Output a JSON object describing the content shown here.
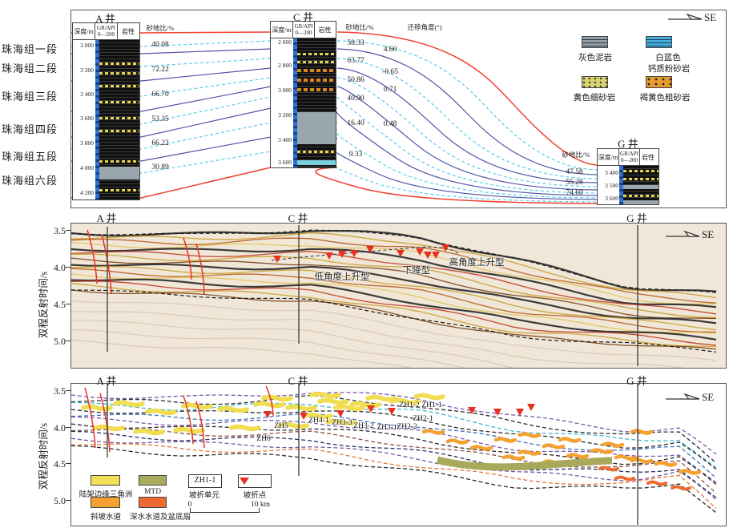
{
  "direction": "SE",
  "axis": {
    "ylabel": "双程反射时间/s",
    "yticks": [
      "3.5",
      "4.0",
      "4.5",
      "5.0"
    ]
  },
  "formations": [
    "珠海组一段",
    "珠海组二段",
    "珠海组三段",
    "珠海组四段",
    "珠海组五段",
    "珠海组六段"
  ],
  "headers": {
    "depth": "深度/m",
    "gr": "GR/API",
    "gr_range": "0—200",
    "lith": "岩性",
    "sand": "砂地比/%",
    "angle": "迁移角度(°)"
  },
  "wells": {
    "A": {
      "name": "A 井",
      "depths": [
        "3 000",
        "3 200",
        "3 400",
        "3 600",
        "3 800",
        "4 000",
        "4 200"
      ],
      "sands": [
        "40.08",
        "72.22",
        "66.70",
        "53.35",
        "66.22",
        "30.89"
      ]
    },
    "C": {
      "name": "C 井",
      "depths": [
        "2 600",
        "2 800",
        "3 000",
        "3 200",
        "3 400",
        "3 600"
      ],
      "sands": [
        "58.33",
        "63.77",
        "50.86",
        "40.90",
        "16.40",
        "9.33"
      ],
      "angles": [
        "4.60",
        "-0.65",
        "0.71",
        "0.48"
      ]
    },
    "G": {
      "name": "G 井",
      "depths": [
        "3 400",
        "3 500",
        "3 600"
      ],
      "sands": [
        "47.58",
        "55.28",
        "74.60"
      ]
    }
  },
  "rock_legend": [
    {
      "label": "灰色泥岩",
      "color": "#93a0a8"
    },
    {
      "label": "白蓝色",
      "label2": "钙质粉砂岩",
      "color": "#45aed6"
    },
    {
      "label": "黄色细砂岩",
      "color": "#d9d06e"
    },
    {
      "label": "褐黄色粗砂岩",
      "color": "#e79a2e"
    }
  ],
  "seismic": {
    "annotations": [
      "低角度上升型",
      "下降型",
      "高角度上升型"
    ]
  },
  "interp": {
    "units": [
      "ZH6",
      "ZH5",
      "ZH4-1",
      "ZH3-3",
      "ZH3-2",
      "ZH3-1",
      "ZH2-2",
      "ZH2-1",
      "ZH1-2",
      "ZH1-1"
    ],
    "legend": {
      "delta": "陆架边缘三角洲",
      "mtd": "MTD",
      "unit_box": "ZH1-1",
      "unit_label": "坡折单元",
      "point_label": "坡折点",
      "slope_channel": "斜坡水道",
      "deep_channel": "深水水道及盆底扇"
    },
    "scale": {
      "start": "0",
      "end": "10 km"
    }
  }
}
